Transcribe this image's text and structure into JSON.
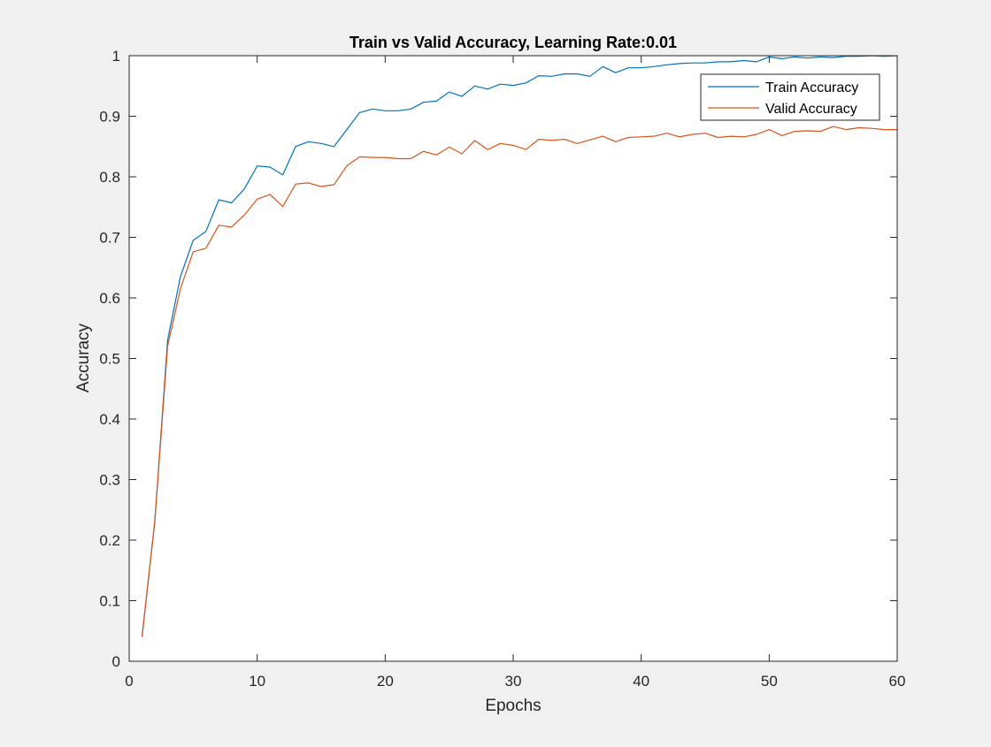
{
  "chart_data": {
    "type": "line",
    "title": "Train vs Valid Accuracy, Learning Rate:0.01",
    "xlabel": "Epochs",
    "ylabel": "Accuracy",
    "xlim": [
      0,
      60
    ],
    "ylim": [
      0,
      1
    ],
    "xticks": [
      0,
      10,
      20,
      30,
      40,
      50,
      60
    ],
    "yticks": [
      0,
      0.1,
      0.2,
      0.3,
      0.4,
      0.5,
      0.6,
      0.7,
      0.8,
      0.9,
      1
    ],
    "grid": false,
    "legend_position": "top-right",
    "x": [
      1,
      2,
      3,
      4,
      5,
      6,
      7,
      8,
      9,
      10,
      11,
      12,
      13,
      14,
      15,
      16,
      17,
      18,
      19,
      20,
      21,
      22,
      23,
      24,
      25,
      26,
      27,
      28,
      29,
      30,
      31,
      32,
      33,
      34,
      35,
      36,
      37,
      38,
      39,
      40,
      41,
      42,
      43,
      44,
      45,
      46,
      47,
      48,
      49,
      50,
      51,
      52,
      53,
      54,
      55,
      56,
      57,
      58,
      59,
      60
    ],
    "series": [
      {
        "name": "Train Accuracy",
        "color": "#0072bd",
        "values": [
          0.04,
          0.23,
          0.53,
          0.635,
          0.695,
          0.71,
          0.762,
          0.757,
          0.78,
          0.818,
          0.816,
          0.803,
          0.85,
          0.858,
          0.855,
          0.85,
          0.878,
          0.906,
          0.912,
          0.909,
          0.909,
          0.912,
          0.923,
          0.925,
          0.94,
          0.933,
          0.95,
          0.945,
          0.953,
          0.951,
          0.955,
          0.967,
          0.966,
          0.97,
          0.97,
          0.966,
          0.982,
          0.972,
          0.98,
          0.98,
          0.982,
          0.985,
          0.987,
          0.988,
          0.988,
          0.99,
          0.99,
          0.992,
          0.99,
          0.998,
          0.995,
          0.998,
          0.996,
          0.998,
          0.997,
          0.999,
          0.999,
          1.0,
          0.999,
          1.0
        ]
      },
      {
        "name": "Valid Accuracy",
        "color": "#d95319",
        "values": [
          0.04,
          0.23,
          0.52,
          0.615,
          0.676,
          0.682,
          0.72,
          0.717,
          0.737,
          0.763,
          0.771,
          0.751,
          0.788,
          0.79,
          0.784,
          0.787,
          0.818,
          0.833,
          0.832,
          0.832,
          0.83,
          0.83,
          0.842,
          0.836,
          0.849,
          0.838,
          0.86,
          0.845,
          0.855,
          0.852,
          0.845,
          0.862,
          0.86,
          0.862,
          0.855,
          0.861,
          0.867,
          0.858,
          0.865,
          0.866,
          0.867,
          0.872,
          0.866,
          0.87,
          0.872,
          0.865,
          0.867,
          0.866,
          0.87,
          0.878,
          0.868,
          0.875,
          0.876,
          0.875,
          0.883,
          0.878,
          0.881,
          0.88,
          0.878,
          0.878
        ]
      }
    ]
  }
}
